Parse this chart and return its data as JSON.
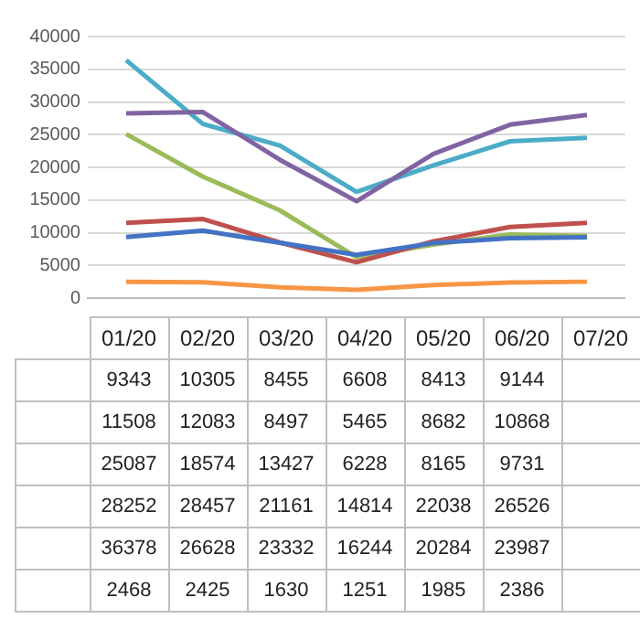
{
  "chart_data": {
    "type": "line",
    "categories": [
      "01/20",
      "02/20",
      "03/20",
      "04/20",
      "05/20",
      "06/20",
      "07/20"
    ],
    "ylim": [
      0,
      40000
    ],
    "yticks": [
      0,
      5000,
      10000,
      15000,
      20000,
      25000,
      30000,
      35000,
      40000
    ],
    "grid": "y",
    "legend": false,
    "marker": "none",
    "line_style": "solid",
    "series": [
      {
        "color": "#4472c4",
        "values": [
          9343,
          10305,
          8455,
          6608,
          8413,
          9144,
          9300
        ],
        "value_labels": [
          "9343",
          "10305",
          "8455",
          "6608",
          "8413",
          "9144",
          null
        ]
      },
      {
        "color": "#c0504d",
        "values": [
          11508,
          12083,
          8497,
          5465,
          8682,
          10868,
          11500
        ],
        "value_labels": [
          "11508",
          "12083",
          "8497",
          "5465",
          "8682",
          "10868",
          null
        ]
      },
      {
        "color": "#9bbb59",
        "values": [
          25087,
          18574,
          13427,
          6228,
          8165,
          9731,
          9500
        ],
        "value_labels": [
          "25087",
          "18574",
          "13427",
          "6228",
          "8165",
          "9731",
          null
        ]
      },
      {
        "color": "#8064a2",
        "values": [
          28252,
          28457,
          21161,
          14814,
          22038,
          26526,
          28000
        ],
        "value_labels": [
          "28252",
          "28457",
          "21161",
          "14814",
          "22038",
          "26526",
          null
        ]
      },
      {
        "color": "#4bacc6",
        "values": [
          36378,
          26628,
          23332,
          16244,
          20284,
          23987,
          24500
        ],
        "value_labels": [
          "36378",
          "26628",
          "23332",
          "16244",
          "20284",
          "23987",
          null
        ]
      },
      {
        "color": "#f79646",
        "values": [
          2468,
          2425,
          1630,
          1251,
          1985,
          2386,
          2500
        ],
        "value_labels": [
          "2468",
          "2425",
          "1630",
          "1251",
          "1985",
          "2386",
          null
        ]
      }
    ]
  }
}
